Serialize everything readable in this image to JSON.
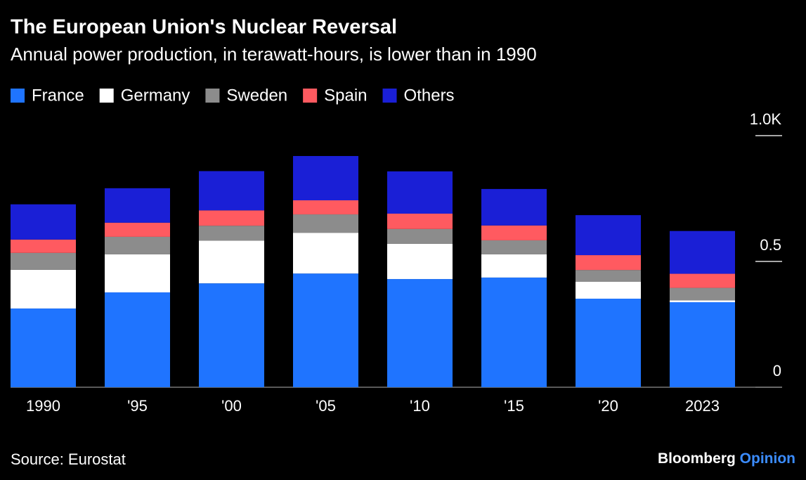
{
  "chart_data": {
    "type": "stacked_bar",
    "title": "The European Union's Nuclear Reversal",
    "subtitle": "Annual power production, in terawatt-hours, is lower than in 1990",
    "categories": [
      "1990",
      "'95",
      "'00",
      "'05",
      "'10",
      "'15",
      "'20",
      "2023"
    ],
    "series": [
      {
        "name": "France",
        "color": "#1f74ff",
        "values": [
          313,
          377,
          413,
          452,
          430,
          436,
          352,
          338
        ]
      },
      {
        "name": "Germany",
        "color": "#ffffff",
        "values": [
          154,
          151,
          170,
          162,
          140,
          92,
          67,
          7
        ]
      },
      {
        "name": "Sweden",
        "color": "#8c8c8c",
        "values": [
          67,
          70,
          59,
          73,
          59,
          56,
          47,
          50
        ]
      },
      {
        "name": "Spain",
        "color": "#ff5a60",
        "values": [
          53,
          56,
          61,
          56,
          61,
          59,
          59,
          56
        ]
      },
      {
        "name": "Others",
        "color": "#1a1fd6",
        "values": [
          140,
          137,
          156,
          176,
          168,
          145,
          159,
          170
        ]
      }
    ],
    "ylim": [
      0,
      1000
    ],
    "yticks": [
      0,
      {
        "value": 500,
        "label": "0.5"
      },
      {
        "value": 1000,
        "label": "1.0K"
      }
    ],
    "source": "Source: Eurostat",
    "brand": "Bloomberg",
    "brand_suffix": "Opinion"
  }
}
